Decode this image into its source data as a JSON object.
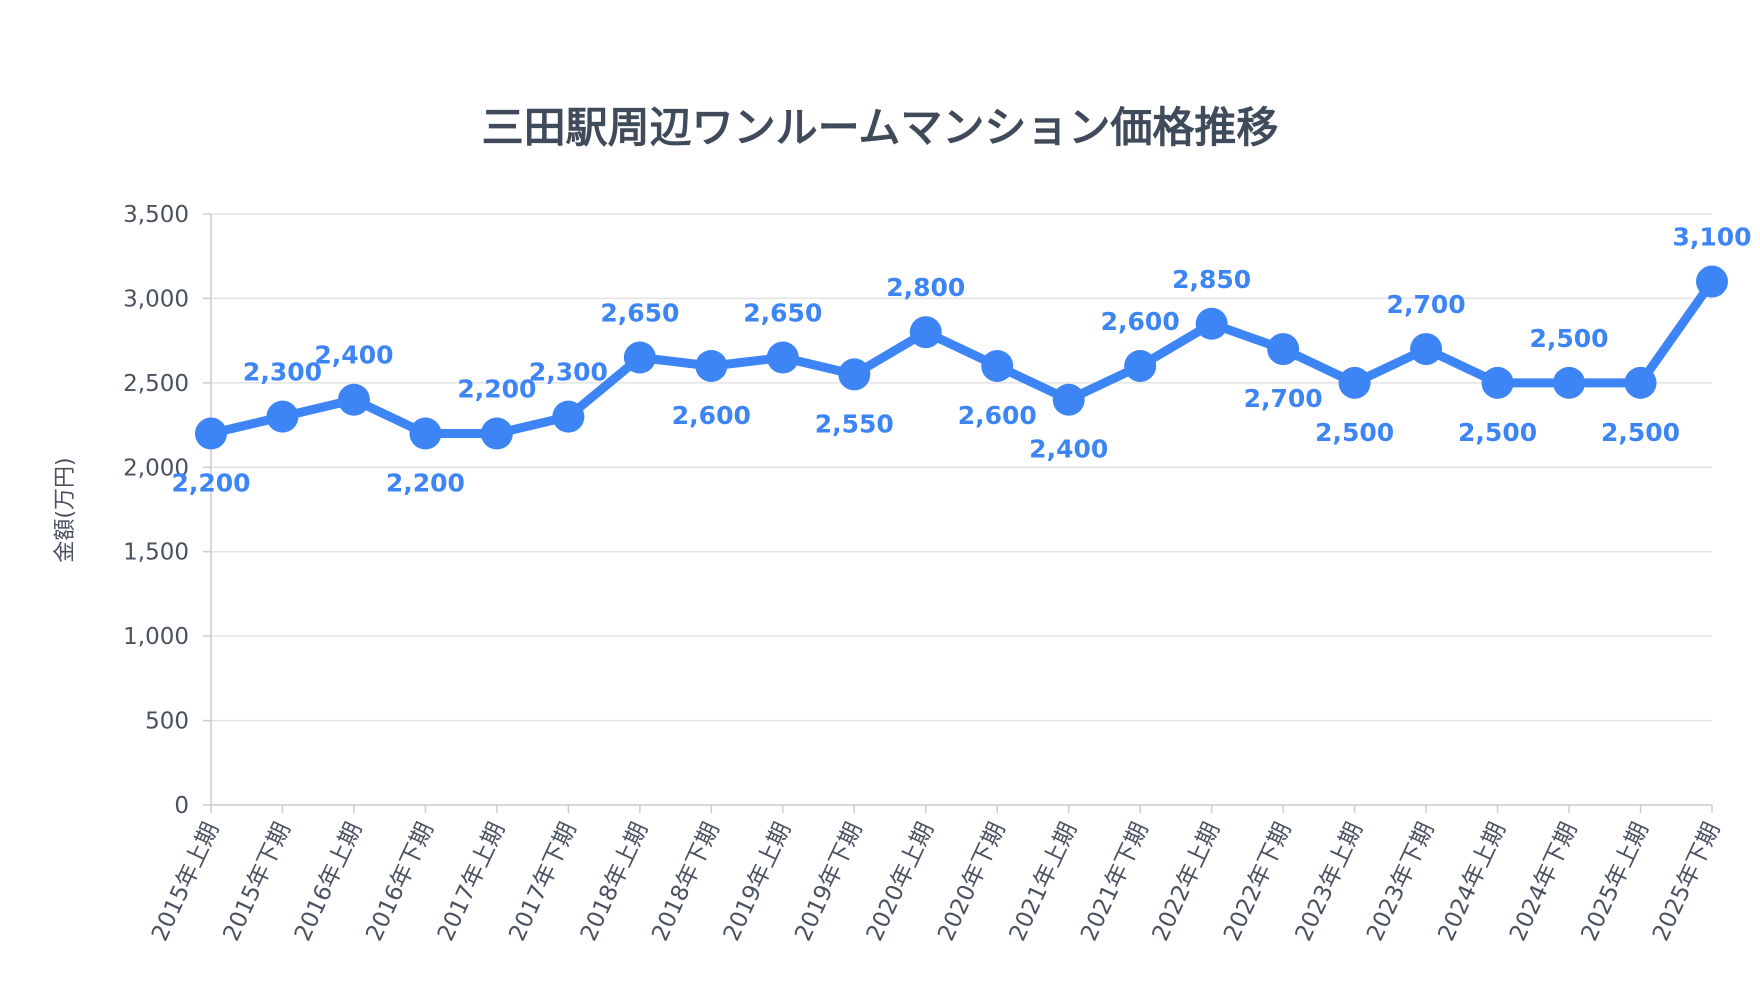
{
  "chart_data": {
    "type": "line",
    "title": "三田駅周辺ワンルームマンション価格推移",
    "ylabel": "金額(万円)",
    "xlabel": "",
    "ylim": [
      0,
      3500
    ],
    "yticks": [
      "0",
      "500",
      "1,000",
      "1,500",
      "2,000",
      "2,500",
      "3,000",
      "3,500"
    ],
    "grid": true,
    "color": "#3d85f5",
    "categories": [
      "2015年上期",
      "2015年下期",
      "2016年上期",
      "2016年下期",
      "2017年上期",
      "2017年下期",
      "2018年上期",
      "2018年下期",
      "2019年上期",
      "2019年下期",
      "2020年上期",
      "2020年下期",
      "2021年上期",
      "2021年下期",
      "2022年上期",
      "2022年下期",
      "2023年上期",
      "2023年下期",
      "2024年上期",
      "2024年下期",
      "2025年上期",
      "2025年下期"
    ],
    "values": [
      2200,
      2300,
      2400,
      2200,
      2200,
      2300,
      2650,
      2600,
      2650,
      2550,
      2800,
      2600,
      2400,
      2600,
      2850,
      2700,
      2500,
      2700,
      2500,
      2500,
      2500,
      3100
    ],
    "data_labels": [
      "2,200",
      "2,300",
      "2,400",
      "2,200",
      "2,200",
      "2,300",
      "2,650",
      "2,600",
      "2,650",
      "2,550",
      "2,800",
      "2,600",
      "2,400",
      "2,600",
      "2,850",
      "2,700",
      "2,500",
      "2,700",
      "2,500",
      "2,500",
      "2,500",
      "3,100"
    ]
  }
}
